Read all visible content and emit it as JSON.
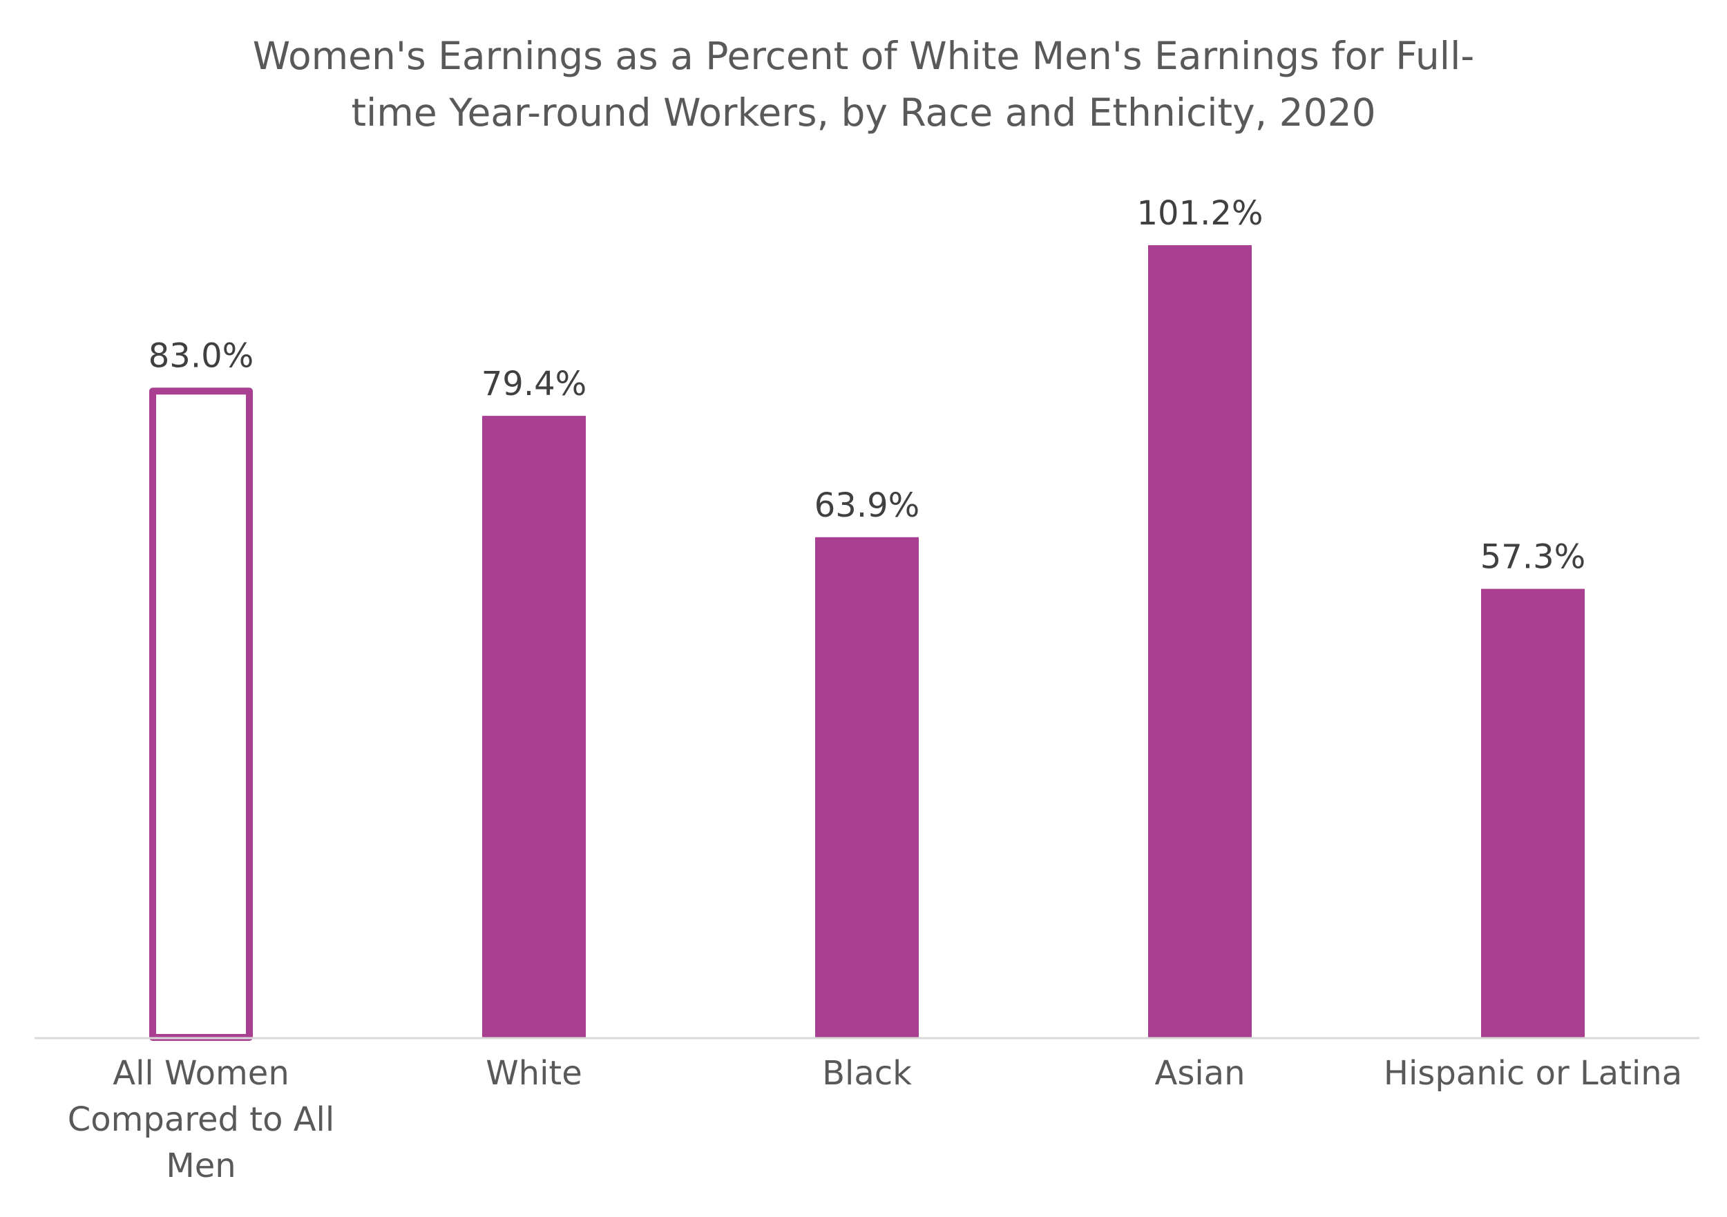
{
  "chart_data": {
    "type": "bar",
    "title_lines": [
      "Women's Earnings as a Percent of White Men's Earnings for Full-",
      "time Year-round Workers, by Race and Ethnicity, 2020"
    ],
    "categories": [
      [
        "All Women",
        "Compared to All",
        "Men"
      ],
      [
        "White"
      ],
      [
        "Black"
      ],
      [
        "Asian"
      ],
      [
        "Hispanic or Latina"
      ]
    ],
    "values": [
      83.0,
      79.4,
      63.9,
      101.2,
      57.3
    ],
    "value_labels": [
      "83.0%",
      "79.4%",
      "63.9%",
      "101.2%",
      "57.3%"
    ],
    "bar_styles": [
      "outline",
      "filled",
      "filled",
      "filled",
      "filled"
    ],
    "ylim": [
      0,
      101.2
    ],
    "grid": false,
    "legend": "none",
    "colors": {
      "bar": "#a83f91",
      "axis": "#d9d9d9",
      "value_text": "#404040",
      "category_text": "#595959",
      "title_text": "#595959"
    }
  }
}
